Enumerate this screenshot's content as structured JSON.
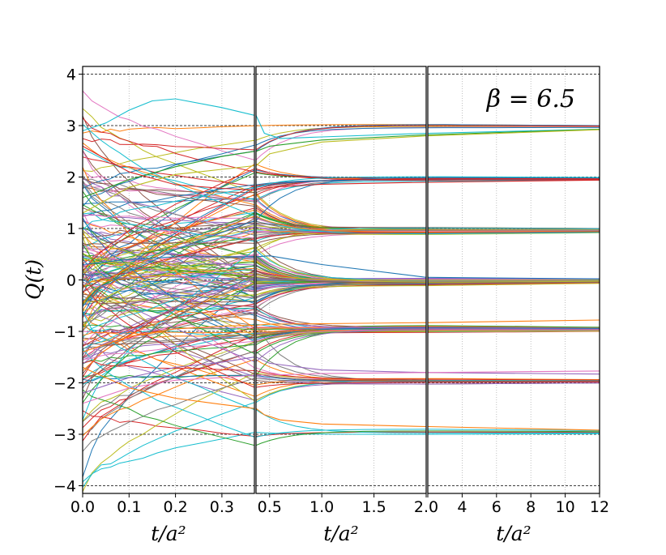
{
  "chart_data": {
    "type": "line",
    "title": "",
    "annotation": "β = 6.5",
    "ylabel": "Q(t)",
    "ylim": [
      -4.15,
      4.15
    ],
    "y_ticks": [
      -4,
      -3,
      -2,
      -1,
      0,
      1,
      2,
      3,
      4
    ],
    "y_tick_labels": [
      "−4",
      "−3",
      "−2",
      "−1",
      "0",
      "1",
      "2",
      "3",
      "4"
    ],
    "grid": "dashed black lines at integer Q, dotted gray vertical lines at x ticks",
    "panels": [
      {
        "xlabel": "t/a²",
        "xlim": [
          0.0,
          0.37
        ],
        "x_ticks": [
          0.0,
          0.1,
          0.2,
          0.3
        ],
        "x_tick_labels": [
          "0.0",
          "0.1",
          "0.2",
          "0.3"
        ]
      },
      {
        "xlabel": "t/a²",
        "xlim": [
          0.37,
          2.0
        ],
        "x_ticks": [
          0.5,
          1.0,
          1.5,
          2.0
        ],
        "x_tick_labels": [
          "0.5",
          "1.0",
          "1.5",
          "2.0"
        ]
      },
      {
        "xlabel": "t/a²",
        "xlim": [
          2.0,
          12.0
        ],
        "x_ticks": [
          2,
          4,
          6,
          8,
          10,
          12
        ],
        "x_tick_labels": [
          "",
          "4",
          "6",
          "8",
          "10",
          "12"
        ]
      }
    ],
    "n_series_approx": 200,
    "plateau_values": [
      -3,
      -2,
      -1,
      0,
      1,
      2,
      3
    ],
    "representative_series": [
      {
        "color": "#17becf",
        "x": [
          0,
          0.05,
          0.1,
          0.15,
          0.2,
          0.3,
          0.37,
          0.45,
          0.6,
          1.0,
          2.0,
          12.0
        ],
        "y": [
          2.9,
          3.05,
          3.3,
          3.48,
          3.52,
          3.35,
          3.2,
          2.85,
          2.75,
          2.78,
          2.85,
          2.93
        ]
      },
      {
        "color": "#ff7f0e",
        "x": [
          0,
          0.1,
          0.2,
          0.3,
          0.37,
          0.45,
          0.6,
          1.0,
          2.0,
          12.0
        ],
        "y": [
          -1.7,
          -2.1,
          -2.3,
          -2.42,
          -2.5,
          -2.62,
          -2.72,
          -2.8,
          -2.85,
          -2.92
        ]
      },
      {
        "color": "#2ca02c",
        "x": [
          0,
          0.1,
          0.2,
          0.3,
          0.37,
          0.5,
          1.0,
          2.0,
          12.0
        ],
        "y": [
          1.6,
          1.95,
          2.2,
          2.4,
          2.5,
          2.6,
          2.72,
          2.82,
          2.93
        ]
      },
      {
        "color": "#bcbd22",
        "x": [
          0,
          0.1,
          0.2,
          0.3,
          0.37,
          0.5,
          1.0,
          2.0,
          12.0
        ],
        "y": [
          1.3,
          1.8,
          2.05,
          2.15,
          2.22,
          2.45,
          2.68,
          2.8,
          2.92
        ]
      },
      {
        "color": "#d62728",
        "x": [
          0,
          0.1,
          0.2,
          0.3,
          0.37,
          0.5,
          1.0,
          2.0,
          12.0
        ],
        "y": [
          2.6,
          2.1,
          1.85,
          1.78,
          1.75,
          1.8,
          1.86,
          1.9,
          1.94
        ]
      },
      {
        "color": "#1f77b4",
        "x": [
          0,
          0.1,
          0.2,
          0.3,
          0.37,
          0.5,
          1.0,
          2.0,
          12.0
        ],
        "y": [
          0.3,
          0.4,
          0.45,
          0.45,
          0.45,
          0.47,
          0.3,
          0.05,
          0.02
        ]
      },
      {
        "color": "#9467bd",
        "x": [
          0,
          0.1,
          0.2,
          0.3,
          0.37,
          0.5,
          1.0,
          2.0,
          12.0
        ],
        "y": [
          -2.2,
          -1.9,
          -1.7,
          -1.6,
          -1.5,
          -1.62,
          -1.75,
          -1.8,
          -1.83
        ]
      },
      {
        "color": "#e377c2",
        "x": [
          0,
          0.1,
          0.2,
          0.3,
          0.37,
          0.5,
          1.0,
          2.0,
          12.0
        ],
        "y": [
          -2.4,
          -2.1,
          -1.95,
          -1.9,
          -1.85,
          -1.85,
          -1.82,
          -1.8,
          -1.77
        ]
      },
      {
        "color": "#ff7f0e",
        "x": [
          0,
          0.1,
          0.2,
          0.3,
          0.37,
          0.5,
          1.0,
          2.0,
          12.0
        ],
        "y": [
          -1.4,
          -1.1,
          -0.95,
          -0.9,
          -0.88,
          -0.86,
          -0.85,
          -0.83,
          -0.78
        ]
      }
    ]
  }
}
